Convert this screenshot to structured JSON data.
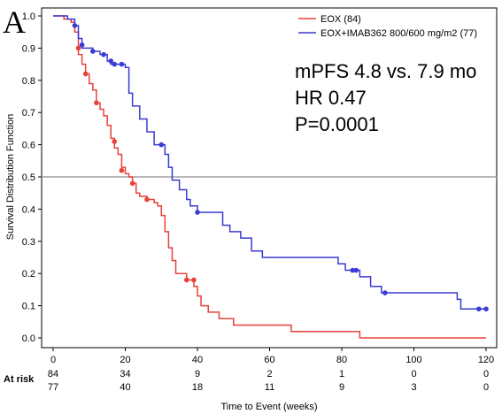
{
  "panel_label": "A",
  "chart_data": {
    "type": "line",
    "title": "",
    "xlabel": "Time to Event (weeks)",
    "ylabel": "Survival Distribution Function",
    "xlim": [
      0,
      120
    ],
    "ylim": [
      0,
      1.0
    ],
    "x_ticks": [
      0,
      20,
      40,
      60,
      80,
      100,
      120
    ],
    "y_ticks": [
      0.0,
      0.1,
      0.2,
      0.3,
      0.4,
      0.5,
      0.6,
      0.7,
      0.8,
      0.9,
      1.0
    ],
    "y_tick_labels": [
      "0.0",
      "0.1",
      "0.2",
      "0.3",
      "0.4",
      "0.5",
      "0.6",
      "0.7",
      "0.8",
      "0.9",
      "1.0"
    ],
    "reference_line_y": 0.5,
    "legend_position": "top-right",
    "annotations": [
      "mPFS 4.8 vs. 7.9 mo",
      "HR 0.47",
      "P=0.0001"
    ],
    "series": [
      {
        "name": "EOX (84)",
        "color": "#e8413c",
        "step": [
          [
            0,
            1.0
          ],
          [
            3,
            0.99
          ],
          [
            5,
            0.98
          ],
          [
            6,
            0.95
          ],
          [
            7,
            0.88
          ],
          [
            8,
            0.85
          ],
          [
            9,
            0.82
          ],
          [
            10,
            0.79
          ],
          [
            11,
            0.77
          ],
          [
            12,
            0.73
          ],
          [
            13,
            0.71
          ],
          [
            14,
            0.69
          ],
          [
            15,
            0.66
          ],
          [
            16,
            0.62
          ],
          [
            17,
            0.59
          ],
          [
            18,
            0.57
          ],
          [
            19,
            0.53
          ],
          [
            20,
            0.51
          ],
          [
            21,
            0.5
          ],
          [
            22,
            0.48
          ],
          [
            23,
            0.45
          ],
          [
            24,
            0.44
          ],
          [
            26,
            0.43
          ],
          [
            28,
            0.42
          ],
          [
            29,
            0.41
          ],
          [
            30,
            0.38
          ],
          [
            31,
            0.33
          ],
          [
            32,
            0.28
          ],
          [
            33,
            0.24
          ],
          [
            34,
            0.2
          ],
          [
            37,
            0.18
          ],
          [
            39,
            0.16
          ],
          [
            40,
            0.13
          ],
          [
            41,
            0.1
          ],
          [
            43,
            0.08
          ],
          [
            46,
            0.06
          ],
          [
            50,
            0.04
          ],
          [
            66,
            0.02
          ],
          [
            85,
            0.0
          ],
          [
            120,
            0.0
          ]
        ],
        "censor_marks": [
          [
            7,
            0.9
          ],
          [
            9,
            0.82
          ],
          [
            12,
            0.73
          ],
          [
            17,
            0.61
          ],
          [
            19,
            0.52
          ],
          [
            22,
            0.48
          ],
          [
            26,
            0.43
          ],
          [
            37,
            0.18
          ],
          [
            39,
            0.18
          ]
        ]
      },
      {
        "name": "EOX+IMAB362 800/600 mg/m2 (77)",
        "color": "#3a3ad4",
        "step": [
          [
            0,
            1.0
          ],
          [
            4,
            0.99
          ],
          [
            6,
            0.97
          ],
          [
            7,
            0.93
          ],
          [
            8,
            0.9
          ],
          [
            11,
            0.89
          ],
          [
            13,
            0.88
          ],
          [
            15,
            0.86
          ],
          [
            16,
            0.85
          ],
          [
            20,
            0.84
          ],
          [
            21,
            0.76
          ],
          [
            22,
            0.72
          ],
          [
            24,
            0.68
          ],
          [
            26,
            0.64
          ],
          [
            28,
            0.6
          ],
          [
            31,
            0.57
          ],
          [
            32,
            0.53
          ],
          [
            33,
            0.49
          ],
          [
            35,
            0.46
          ],
          [
            37,
            0.43
          ],
          [
            38,
            0.41
          ],
          [
            40,
            0.39
          ],
          [
            47,
            0.35
          ],
          [
            49,
            0.33
          ],
          [
            52,
            0.31
          ],
          [
            55,
            0.27
          ],
          [
            58,
            0.25
          ],
          [
            79,
            0.23
          ],
          [
            81,
            0.21
          ],
          [
            85,
            0.19
          ],
          [
            88,
            0.16
          ],
          [
            91,
            0.14
          ],
          [
            112,
            0.12
          ],
          [
            113,
            0.09
          ],
          [
            120,
            0.09
          ]
        ],
        "censor_marks": [
          [
            6,
            0.97
          ],
          [
            8,
            0.91
          ],
          [
            11,
            0.89
          ],
          [
            14,
            0.88
          ],
          [
            16,
            0.86
          ],
          [
            17,
            0.85
          ],
          [
            19,
            0.85
          ],
          [
            30,
            0.6
          ],
          [
            40,
            0.39
          ],
          [
            83,
            0.21
          ],
          [
            84,
            0.21
          ],
          [
            92,
            0.14
          ],
          [
            118,
            0.09
          ],
          [
            120,
            0.09
          ]
        ]
      }
    ],
    "at_risk": {
      "label": "At risk",
      "times": [
        0,
        20,
        40,
        60,
        80,
        100,
        120
      ],
      "rows": [
        {
          "group": "EOX (84)",
          "counts": [
            "84",
            "34",
            "9",
            "2",
            "1",
            "0",
            "0"
          ]
        },
        {
          "group": "EOX+IMAB362 800/600 mg/m2 (77)",
          "counts": [
            "77",
            "40",
            "18",
            "11",
            "9",
            "3",
            "0"
          ]
        }
      ]
    }
  }
}
